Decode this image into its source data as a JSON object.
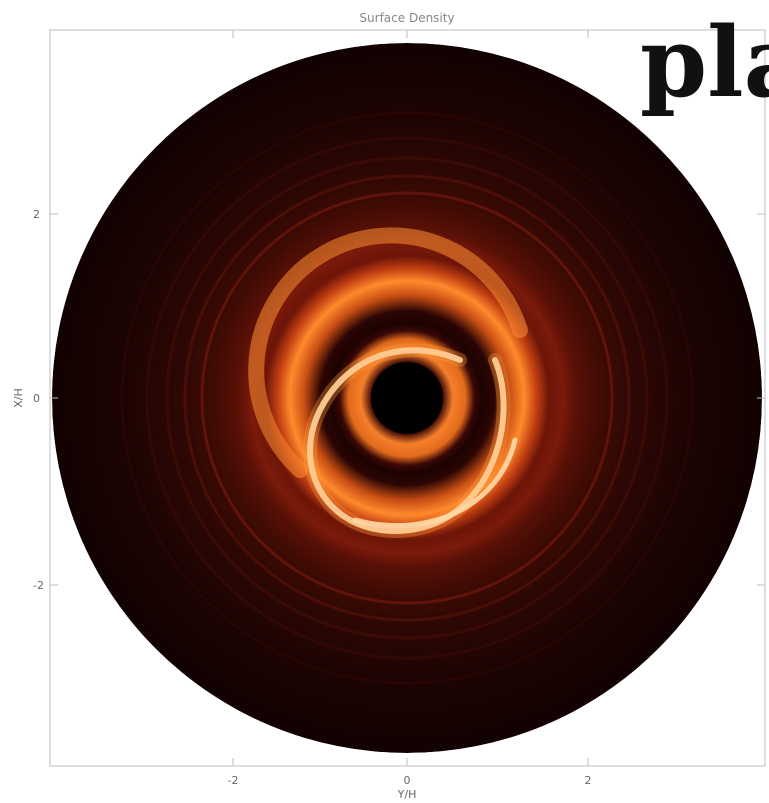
{
  "chart_data": {
    "type": "heatmap",
    "title": "Surface Density",
    "xlabel": "Y/H",
    "ylabel": "X/H",
    "xlim": [
      -4.4,
      4.4
    ],
    "ylim": [
      -4.4,
      4.4
    ],
    "x_ticks": [
      -2,
      0,
      2
    ],
    "y_ticks": [
      -2,
      0,
      2
    ],
    "grid": false,
    "colormap": "black-red-orange-white",
    "colors": {
      "background": "#000000",
      "low": "#1a0202",
      "mid": "#b8320b",
      "high": "#ff8c2a",
      "peak": "#fff2d8"
    },
    "disk": {
      "center": [
        0,
        0
      ],
      "outer_radius": 4,
      "inner_hole_radius": 0.4
    },
    "features": {
      "inner_spiral_arm": "bright white-orange spiral wrapping around the inner hole",
      "outer_ring_radius": 1.5,
      "gap_radius": 1.0
    }
  },
  "overlay_text": "pla"
}
